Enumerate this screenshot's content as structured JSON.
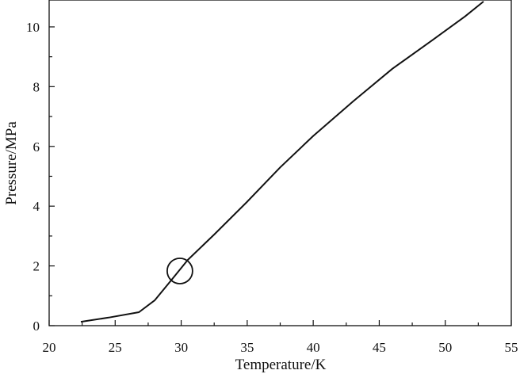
{
  "chart_data": {
    "type": "line",
    "title": "",
    "xlabel": "Temperature/K",
    "ylabel": "Pressure/MPa",
    "xlim": [
      20,
      55
    ],
    "ylim": [
      0,
      10.9
    ],
    "xticks": [
      "20",
      "25",
      "30",
      "35",
      "40",
      "45",
      "50",
      "55"
    ],
    "yticks": [
      "0",
      "2",
      "4",
      "6",
      "8",
      "10"
    ],
    "grid": false,
    "series": [
      {
        "x": [
          22.4,
          24.5,
          26.8,
          28.0,
          29.3,
          30.5,
          32.5,
          35.0,
          37.5,
          40.0,
          43.0,
          46.0,
          49.0,
          51.5,
          52.9
        ],
        "y": [
          0.13,
          0.27,
          0.45,
          0.85,
          1.55,
          2.2,
          3.05,
          4.15,
          5.3,
          6.35,
          7.5,
          8.6,
          9.55,
          10.35,
          10.85
        ]
      }
    ],
    "annotations": [
      {
        "type": "circle",
        "x": 29.9,
        "y": 1.83
      }
    ]
  }
}
